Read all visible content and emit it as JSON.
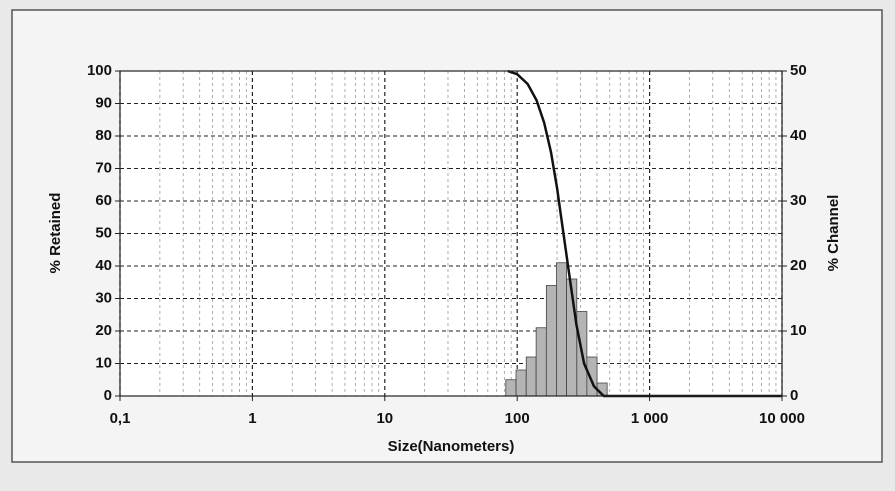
{
  "chart_data": {
    "type": "combo",
    "x_label": "Size(Nanometers)",
    "y_label": "% Retained",
    "y2_label": "% Channel",
    "xscale": "log",
    "xlim": [
      0.1,
      10000
    ],
    "xticks": [
      {
        "value": 0.1,
        "label": "0,1"
      },
      1,
      10,
      100,
      {
        "value": 1000,
        "label": "1 000"
      },
      {
        "value": 10000,
        "label": "10 000"
      }
    ],
    "ylim": [
      0,
      100
    ],
    "yticks": [
      0,
      10,
      20,
      30,
      40,
      50,
      60,
      70,
      80,
      90,
      100
    ],
    "y2lim": [
      0,
      50
    ],
    "y2ticks": [
      0,
      10,
      20,
      30,
      40,
      50
    ],
    "grid": true,
    "minor_grid": true,
    "histogram": {
      "axis": "y2",
      "color": "#b4b4b4",
      "bins": [
        82,
        98,
        117,
        139,
        166,
        198,
        236,
        282,
        336,
        401,
        478
      ],
      "counts": [
        2.5,
        4,
        6,
        10.5,
        17,
        20.5,
        18,
        13,
        6,
        2
      ]
    },
    "line": {
      "color": "#111111",
      "x": [
        85,
        100,
        120,
        140,
        160,
        180,
        200,
        220,
        250,
        280,
        320,
        380,
        450,
        1000,
        10000
      ],
      "y": [
        100,
        99,
        96,
        91,
        84,
        75,
        64,
        52,
        36,
        22,
        10,
        3,
        0,
        0,
        0
      ]
    }
  }
}
